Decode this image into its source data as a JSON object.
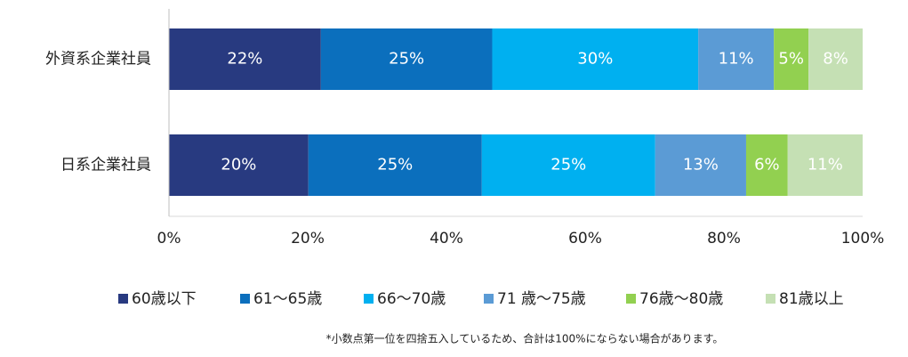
{
  "chart_data": {
    "type": "stacked-barh",
    "categories": [
      "外資系企業社員",
      "日系企業社員"
    ],
    "series": [
      {
        "name": "60歳以下",
        "color": "#283a80",
        "values": [
          21.9,
          20.1
        ],
        "value_labels": [
          "22%",
          "20%"
        ]
      },
      {
        "name": "61～65歳",
        "color": "#0b6fbd",
        "values": [
          24.7,
          25.0
        ],
        "value_labels": [
          "25%",
          "25%"
        ]
      },
      {
        "name": "66～70歳",
        "color": "#00b0f0",
        "values": [
          29.7,
          25.0
        ],
        "value_labels": [
          "30%",
          "25%"
        ]
      },
      {
        "name": "71 歳～75歳",
        "color": "#5b9bd5",
        "values": [
          10.9,
          13.1
        ],
        "value_labels": [
          "11%",
          "13%"
        ]
      },
      {
        "name": "76歳～80歳",
        "color": "#92d050",
        "values": [
          5.0,
          6.0
        ],
        "value_labels": [
          "5%",
          "6%"
        ]
      },
      {
        "name": "81歳以上",
        "color": "#c5e0b4",
        "values": [
          7.8,
          10.8
        ],
        "value_labels": [
          "8%",
          "11%"
        ]
      }
    ],
    "xlim": [
      0,
      100
    ],
    "xticks": [
      {
        "value": 0,
        "label": "0%"
      },
      {
        "value": 20,
        "label": "20%"
      },
      {
        "value": 40,
        "label": "40%"
      },
      {
        "value": 60,
        "label": "60%"
      },
      {
        "value": 80,
        "label": "80%"
      },
      {
        "value": 100,
        "label": "100%"
      }
    ],
    "note": "*小数点第一位を四捨五入しているため、合計は100%にならない場合があります。"
  }
}
